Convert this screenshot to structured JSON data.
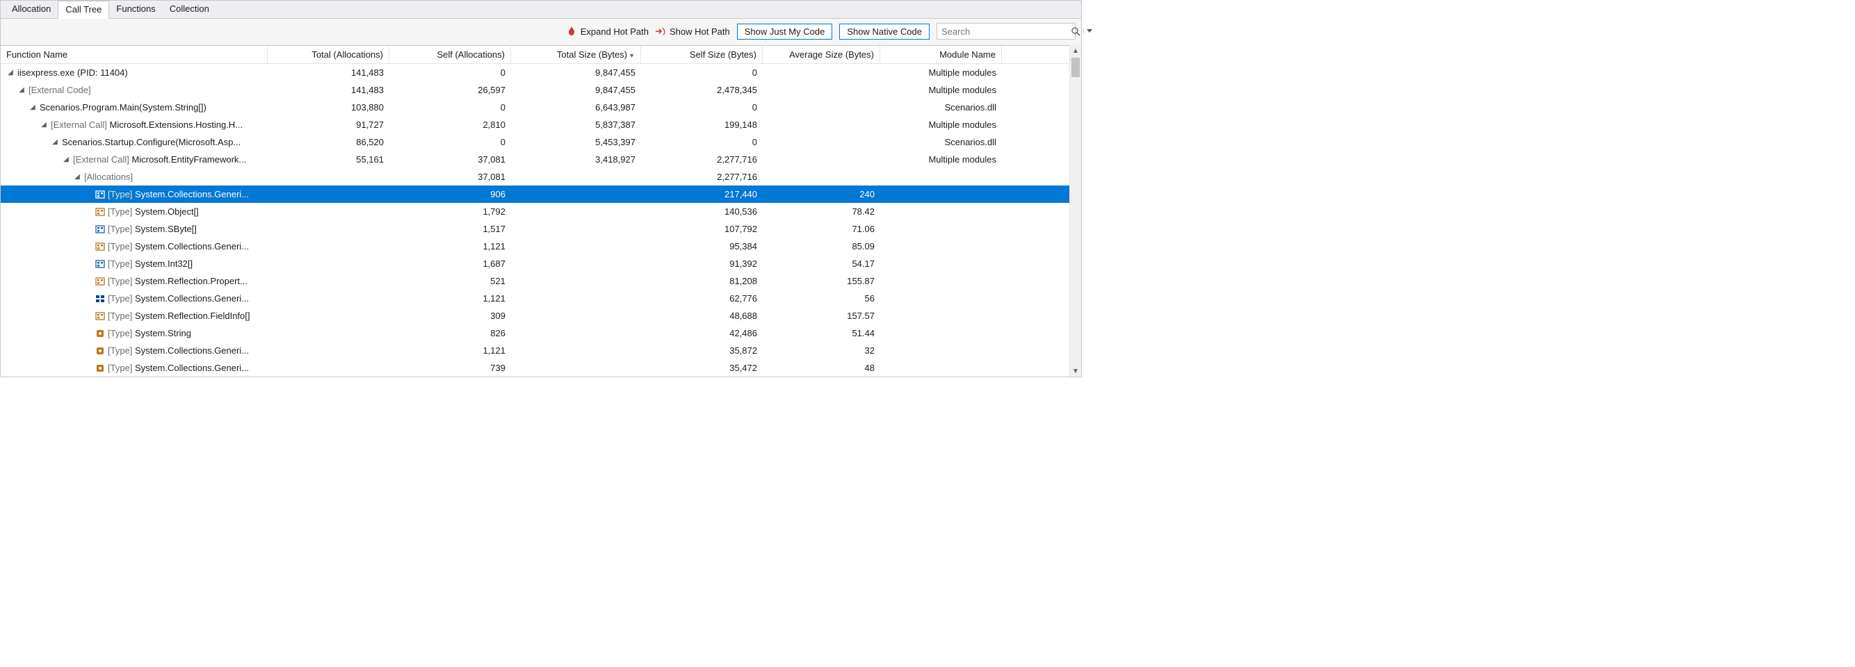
{
  "tabs": {
    "items": [
      "Allocation",
      "Call Tree",
      "Functions",
      "Collection"
    ],
    "active_index": 1
  },
  "toolbar": {
    "expand_hot_path": "Expand Hot Path",
    "show_hot_path": "Show Hot Path",
    "show_just_my_code": "Show Just My Code",
    "show_native_code": "Show Native Code",
    "search_placeholder": "Search",
    "flame_color": "#d13438",
    "arrow_color": "#d13438",
    "btn_border": "#0078d4"
  },
  "columns": {
    "name": "Function Name",
    "total": "Total (Allocations)",
    "self": "Self (Allocations)",
    "tsize": "Total Size (Bytes)",
    "ssize": "Self Size (Bytes)",
    "asize": "Average Size (Bytes)",
    "mod": "Module Name",
    "sort_col": "tsize",
    "sort_dir": "desc"
  },
  "colors": {
    "selection_bg": "#0078d4",
    "selection_fg": "#ffffff",
    "ext_text": "#6d6d6d",
    "icon_blue": "#1e5cb3",
    "icon_orange": "#c27417",
    "icon_darkblue": "#0b3e91"
  },
  "rows": [
    {
      "depth": 0,
      "expander": "open",
      "icon": "none",
      "prefix": "",
      "label": "iisexpress.exe (PID: 11404)",
      "total": "141,483",
      "self": "0",
      "tsize": "9,847,455",
      "ssize": "0",
      "asize": "",
      "mod": "Multiple modules",
      "selected": false
    },
    {
      "depth": 1,
      "expander": "open",
      "icon": "none",
      "prefix": "",
      "label_ext": "[External Code]",
      "total": "141,483",
      "self": "26,597",
      "tsize": "9,847,455",
      "ssize": "2,478,345",
      "asize": "",
      "mod": "Multiple modules",
      "selected": false
    },
    {
      "depth": 2,
      "expander": "open",
      "icon": "none",
      "prefix": "",
      "label": "Scenarios.Program.Main(System.String[])",
      "total": "103,880",
      "self": "0",
      "tsize": "6,643,987",
      "ssize": "0",
      "asize": "",
      "mod": "Scenarios.dll",
      "selected": false
    },
    {
      "depth": 3,
      "expander": "open",
      "icon": "none",
      "prefix_ext": "[External Call] ",
      "label": "Microsoft.Extensions.Hosting.H...",
      "total": "91,727",
      "self": "2,810",
      "tsize": "5,837,387",
      "ssize": "199,148",
      "asize": "",
      "mod": "Multiple modules",
      "selected": false
    },
    {
      "depth": 4,
      "expander": "open",
      "icon": "none",
      "prefix": "",
      "label": "Scenarios.Startup.Configure(Microsoft.Asp...",
      "total": "86,520",
      "self": "0",
      "tsize": "5,453,397",
      "ssize": "0",
      "asize": "",
      "mod": "Scenarios.dll",
      "selected": false
    },
    {
      "depth": 5,
      "expander": "open",
      "icon": "none",
      "prefix_ext": "[External Call] ",
      "label": "Microsoft.EntityFramework...",
      "total": "55,161",
      "self": "37,081",
      "tsize": "3,418,927",
      "ssize": "2,277,716",
      "asize": "",
      "mod": "Multiple modules",
      "selected": false
    },
    {
      "depth": 6,
      "expander": "open",
      "icon": "none",
      "prefix": "",
      "label_ext": "[Allocations]",
      "total": "",
      "self": "37,081",
      "tsize": "",
      "ssize": "2,277,716",
      "asize": "",
      "mod": "",
      "selected": false
    },
    {
      "depth": 7,
      "expander": "none",
      "icon": "struct",
      "prefix_ext": "[Type] ",
      "label": "System.Collections.Generi...",
      "total": "",
      "self": "906",
      "tsize": "",
      "ssize": "217,440",
      "asize": "240",
      "mod": "",
      "selected": true
    },
    {
      "depth": 7,
      "expander": "none",
      "icon": "class",
      "prefix_ext": "[Type] ",
      "label": "System.Object[]",
      "total": "",
      "self": "1,792",
      "tsize": "",
      "ssize": "140,536",
      "asize": "78.42",
      "mod": "",
      "selected": false
    },
    {
      "depth": 7,
      "expander": "none",
      "icon": "struct",
      "prefix_ext": "[Type] ",
      "label": "System.SByte[]",
      "total": "",
      "self": "1,517",
      "tsize": "",
      "ssize": "107,792",
      "asize": "71.06",
      "mod": "",
      "selected": false
    },
    {
      "depth": 7,
      "expander": "none",
      "icon": "class",
      "prefix_ext": "[Type] ",
      "label": "System.Collections.Generi...",
      "total": "",
      "self": "1,121",
      "tsize": "",
      "ssize": "95,384",
      "asize": "85.09",
      "mod": "",
      "selected": false
    },
    {
      "depth": 7,
      "expander": "none",
      "icon": "struct",
      "prefix_ext": "[Type] ",
      "label": "System.Int32[]",
      "total": "",
      "self": "1,687",
      "tsize": "",
      "ssize": "91,392",
      "asize": "54.17",
      "mod": "",
      "selected": false
    },
    {
      "depth": 7,
      "expander": "none",
      "icon": "class",
      "prefix_ext": "[Type] ",
      "label": "System.Reflection.Propert...",
      "total": "",
      "self": "521",
      "tsize": "",
      "ssize": "81,208",
      "asize": "155.87",
      "mod": "",
      "selected": false
    },
    {
      "depth": 7,
      "expander": "none",
      "icon": "enum",
      "prefix_ext": "[Type] ",
      "label": "System.Collections.Generi...",
      "total": "",
      "self": "1,121",
      "tsize": "",
      "ssize": "62,776",
      "asize": "56",
      "mod": "",
      "selected": false
    },
    {
      "depth": 7,
      "expander": "none",
      "icon": "class",
      "prefix_ext": "[Type] ",
      "label": "System.Reflection.FieldInfo[]",
      "total": "",
      "self": "309",
      "tsize": "",
      "ssize": "48,688",
      "asize": "157.57",
      "mod": "",
      "selected": false
    },
    {
      "depth": 7,
      "expander": "none",
      "icon": "method",
      "prefix_ext": "[Type] ",
      "label": "System.String",
      "total": "",
      "self": "826",
      "tsize": "",
      "ssize": "42,486",
      "asize": "51.44",
      "mod": "",
      "selected": false
    },
    {
      "depth": 7,
      "expander": "none",
      "icon": "method",
      "prefix_ext": "[Type] ",
      "label": "System.Collections.Generi...",
      "total": "",
      "self": "1,121",
      "tsize": "",
      "ssize": "35,872",
      "asize": "32",
      "mod": "",
      "selected": false
    },
    {
      "depth": 7,
      "expander": "none",
      "icon": "method",
      "prefix_ext": "[Type] ",
      "label": "System.Collections.Generi...",
      "total": "",
      "self": "739",
      "tsize": "",
      "ssize": "35,472",
      "asize": "48",
      "mod": "",
      "selected": false
    }
  ]
}
